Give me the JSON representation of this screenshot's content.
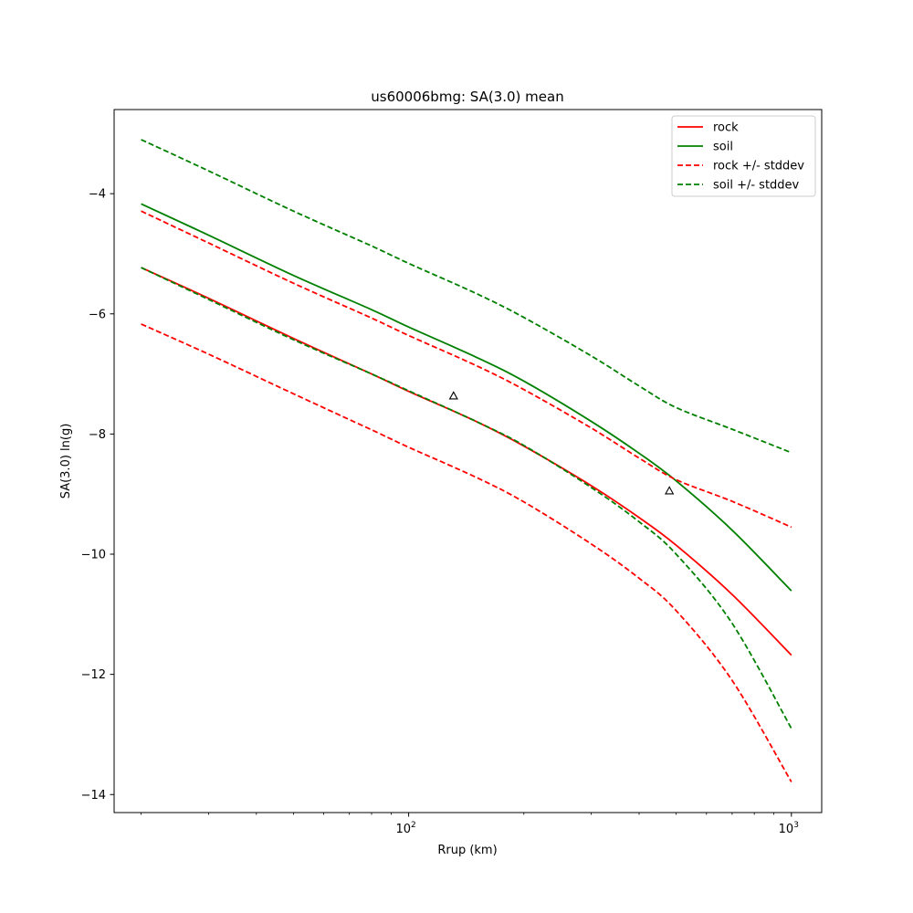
{
  "chart_data": {
    "type": "line",
    "title": "us60006bmg: SA(3.0) mean",
    "xlabel": "Rrup (km)",
    "ylabel": "SA(3.0) ln(g)",
    "xscale": "log",
    "xlim": [
      17,
      1200
    ],
    "ylim": [
      -14.3,
      -2.6
    ],
    "xtick_major": [
      100,
      1000
    ],
    "xtick_base": "10",
    "xtick_exponents": [
      "2",
      "3"
    ],
    "ytick_values": [
      -14,
      -12,
      -10,
      -8,
      -6,
      -4
    ],
    "ytick_labels": [
      "−14",
      "−12",
      "−10",
      "−8",
      "−6",
      "−4"
    ],
    "grid": false,
    "legend_position": "top-right",
    "series": [
      {
        "name": "rock",
        "color": "#ff0000",
        "style": "solid",
        "x": [
          20,
          30,
          50,
          80,
          100,
          150,
          200,
          300,
          400,
          500,
          700,
          1000
        ],
        "y": [
          -5.23,
          -5.74,
          -6.41,
          -7.0,
          -7.29,
          -7.79,
          -8.2,
          -8.86,
          -9.39,
          -9.85,
          -10.67,
          -11.68
        ]
      },
      {
        "name": "soil",
        "color": "#008000",
        "style": "solid",
        "x": [
          20,
          30,
          50,
          80,
          100,
          150,
          200,
          300,
          400,
          500,
          700,
          1000
        ],
        "y": [
          -4.17,
          -4.69,
          -5.36,
          -5.93,
          -6.22,
          -6.72,
          -7.12,
          -7.79,
          -8.32,
          -8.78,
          -9.6,
          -10.61
        ]
      },
      {
        "name": "rock +/- stddev",
        "color": "#ff0000",
        "style": "dashed",
        "x": [
          20,
          30,
          50,
          80,
          100,
          150,
          200,
          300,
          400,
          500,
          700,
          1000
        ],
        "y": [
          -4.29,
          -4.82,
          -5.49,
          -6.07,
          -6.36,
          -6.86,
          -7.26,
          -7.9,
          -8.4,
          -8.76,
          -9.12,
          -9.55
        ]
      },
      {
        "name": "",
        "color": "#ff0000",
        "style": "dashed",
        "x": [
          20,
          30,
          50,
          80,
          100,
          150,
          200,
          300,
          400,
          500,
          700,
          1000
        ],
        "y": [
          -6.17,
          -6.67,
          -7.33,
          -7.93,
          -8.22,
          -8.72,
          -9.13,
          -9.83,
          -10.4,
          -10.94,
          -12.1,
          -13.79
        ]
      },
      {
        "name": "soil +/- stddev",
        "color": "#008000",
        "style": "dashed",
        "x": [
          20,
          30,
          50,
          80,
          100,
          150,
          200,
          300,
          400,
          500,
          700,
          1000
        ],
        "y": [
          -3.1,
          -3.62,
          -4.29,
          -4.87,
          -5.16,
          -5.66,
          -6.06,
          -6.7,
          -7.2,
          -7.56,
          -7.92,
          -8.31
        ]
      },
      {
        "name": "",
        "color": "#008000",
        "style": "dashed",
        "x": [
          20,
          30,
          50,
          80,
          100,
          150,
          200,
          300,
          400,
          500,
          700,
          1000
        ],
        "y": [
          -5.23,
          -5.76,
          -6.43,
          -7.0,
          -7.28,
          -7.79,
          -8.19,
          -8.89,
          -9.46,
          -10.0,
          -11.15,
          -12.9
        ]
      }
    ],
    "points": [
      {
        "x": 131,
        "y": -7.37,
        "marker": "triangle-open",
        "color": "#000000"
      },
      {
        "x": 480,
        "y": -8.95,
        "marker": "triangle-open",
        "color": "#000000"
      }
    ]
  }
}
